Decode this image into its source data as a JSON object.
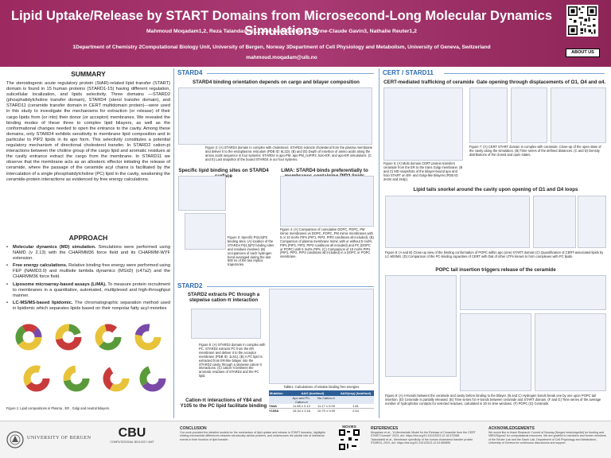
{
  "header": {
    "title": "Lipid Uptake/Release by START Domains from Microsecond-Long Molecular Dynamics Simulations",
    "authors": "Mahmoud Moqadam1,2, Reza Talandashti1,2, Parveen Gartan1,2, Anne-Claude Gavin3, Nathalie Reuter1,2",
    "affiliations": "1Department of Chemistry 2Computational Biology Unit, University of Bergen, Norway 3Department of Cell Physiology and Metabolism, University of Geneva, Switzerland",
    "email": "mahmoud.moqadam@uib.no",
    "about_label": "ABOUT US"
  },
  "summary": {
    "heading": "SUMMARY",
    "text": "The steroidogenic acute regulatory protein (StAR)-related lipid transfer (START) domain is found in 15 human proteins (STARD1-15) having different regulation, subcellular localization, and lipids selectivity. Three domains —STARD2 (phosphatidylcholine transfer domain), STARD4 (sterol transfer domain), and STARD11 (ceramide transfer domain in CERT multidomain protein)—were used in this study to investigate the mechanisms for extraction (or release) of their cargo lipids from (or into) their donor (or acceptor) membranes. We revealed the binding modes of these three to complex lipid bilayers, as well as the conformational changes needed to open the entrance to the cavity. Among these domains, only STARD4 exhibits sensitivity to membrane lipid composition and in particular to PIP2 lipids in its apo form. This selectivity constitutes a potential regulatory mechanism of directional cholesterol transfer. In STARD2 cation-pi interactions between the choline group of the cargo lipid and aromatic residues at the cavity entrance extract the cargo from the membrane. In STARD11 we observe that the membrane acts as an allosteric effector initiating the release of ceramide, where the passage of the ceramide acyl chains is facilitated by the intercalation of a single phosphatidylcholine (PC) lipid in the cavity, weakening the ceramide-protein interactions as evidenced by free energy calculations."
  },
  "approach": {
    "heading": "APPROACH",
    "items": [
      {
        "bold": "Molecular dynamics (MD) simulation.",
        "text": " Simulations were performed using NAMD (v 2.13) with the CHARMM36 force field and its CHARMM-WYF extension."
      },
      {
        "bold": "Free energy calculations.",
        "text": " Relative binding free energy were performed using FEP (NAMD3.0) and multisite lambda dynamics (MSλD) (c47a2) and the CHARMM36 force field."
      },
      {
        "bold": "Liposome microarray-based assays (LiMA).",
        "text": " To measure protein recruitment to membranes in a quantitative, automated, multiplexed and high-throughput manner."
      },
      {
        "bold": "LC-MS/MS-based lipidomic.",
        "text": " The chromatographic separation method used in lipidomic which separates lipids based on their nonpolar fatty acyl moieties"
      }
    ],
    "fig_caption": "Figure 1: Lipid compositions in Plasma , ER , Golgi and neutral bilayers."
  },
  "stard4": {
    "section": "STARD4",
    "title1": "STARD4 binding orientation depends on cargo and bilayer composition",
    "fig2_caption": "Figure 2: (A) STARD4 domain in complex with cholesterol. STARD4 extracts cholesterol from the plasma membrane and deliver it to the endoplasmic reticulum (PDB ID: 6L1D). (B) and (D) Depth of insertion of amino acids along the amino acids sequence in four systems: STARD4 in apo-PM, apo-PM_noPIP2, holo-ER, and apo-ER simulations. (C and E) Last snapshot of the bound STARD4 in our four systems.",
    "title2": "Specific lipid binding sites on STARD4 surface",
    "fig3_caption": "Figure 3: Specific PI(4,5)P2 binding sites. (A) location of the STARD4 PI(4,5)P2 binding sites and residues involved. (B) occupancies of each hydrogen bond averaged during the last 500 ns of the two replica trajectories.",
    "title3": "LiMA: STARD4 binds preferentially to membranes containing PIP2 lipids",
    "fig4_caption": "Figure 4: (A) Comparison of cumulative DOPC, POPC, PM mimic membranes vs DOPC, POPC, PM mimic membranes with 5 or 10 mol% PIPs (PIP1, PIP2, PIP3 conditions all included). (B) Comparison of plasma membrane mimic with or without 5 mol% PIPs (PIP1, PIP2, PIP3 conditions all included) and PC (DOPC or POPC) with 5 mol% PIPs. (C) Comparison of 10 mol% PIPs (PIP1, PIP2, PIP3 conditions all included) in a DOPC or POPC membrane."
  },
  "stard2": {
    "section": "STARD2",
    "title1": "STARD2 extracts PC through a stepwise cation-π interaction",
    "fig5_caption": "Figure 5: (A) STARD2 domain in complex with PC. STARD2 extracts PC from the ER membrane and deliver it to the acceptor membrane (PDB ID: 1LN1). (B) A PC lipid is extracted from ER-like bilayer into the STARD2 cavity through a stepwise cation-π interactions. (C) cation-π between the aromatic residues of STARD2 and the PC lipid.",
    "title2": "Cation-π interactions of Y84 and Y105 to the PC lipid facilitate binding",
    "fig6_caption": "Figure 6: (A) Structure of the STARD2 in complex with PC and cation-π. The difference ΔΔG in binding free energy upon mutation were calculated by FEP and MSλD.",
    "table_caption": "Table1: Calculations of relative binding free energies",
    "table": {
      "headers": [
        "Mutation",
        "ΔΔG (kcal/mol)",
        "",
        "ΔΔG(exp) (kcal/mol)"
      ],
      "sub": [
        "",
        "Apo and PC-Cation-π",
        "No Cation-π",
        ""
      ],
      "rows": [
        [
          "Y84A",
          "11.98 ± 0.12",
          "11.17 ± 0.09",
          "1.81"
        ],
        [
          "Y105A",
          "15.34 ± 0.16",
          "10.70 ± 0.09",
          "2.54"
        ]
      ]
    }
  },
  "cert": {
    "section": "CERT / STARD11",
    "title1": "CERT-mediated trafficking of ceramide",
    "fig6_caption": "Figure 6: (A) Multi domain CERT protein transfers ceramide from the ER to the trans Golgi membrane. (B and C) MD snapshots of the bilayer-bound apo and holo START on ER- and Golgi-like bilayers (PDB ID: 2e3m and 2e3p).",
    "title2": "Gate opening through displacements of Ω1, Ω4 and α4.",
    "fig7_caption": "Figure 7: (A) CERT START domain in complex with ceramide. Close-up of the open state of the cavity along the simulation. (B) Time series of the defined distances. (C and D) Density distributions of the closed and open states.",
    "title3": "Lipid tails snorkel around the cavity upon opening of Ω1 and Ω4 loops",
    "fig8_caption": "Figure 8: (A and B) Close-up view of the binding conformation of POPC within apo (one) START domain (C) Quantification of CERT-associated lipids by LC-MS/MS. (D) Comparison of the PC-binding capacities of CERT with that of other LTPs known to form complexes with PC lipids.",
    "title4": "POPC tail insertion triggers release of the ceramide",
    "fig9_caption": "Figure 9: (A) H-bonds between the ceramide and cavity before binding to the bilayer. (B and C) Hydrogen bonds break one by one upon POPC tail insertion. (D) Ceramide is partially released. (E) Time series for H-bonds between ceramide and START domain. (F and G) Time series of the average number of hydrophobic contacts for selected residues, calculated in 20 ns time windows. (F) POPC (G) Ceramide."
  },
  "footer": {
    "conclusion_heading": "CONCLUSION",
    "conclusion_text": "Our work provided the detailed models for the mechanism of lipid uptake and release in START domains, highlights striking mechanistic differences between structurally similar proteins, and underscores the pivotal role of interfacial events in their function of lipid transfer.",
    "movies": "MOVIES",
    "references_heading": "REFERENCES",
    "ref1": "Moqadam et al., \"A Mechanistic Model for the Release of Ceramide from the CERT START Domain\" 2023, doi: https://doi.org/10.1101/2023.12.18.572088",
    "ref2": "Talandashti et al., Membrane specificity of the human cholesterol transfer protein STARD4, 2023, doi: https://doi.org/10.1101/2023.12.04.569895",
    "ack_heading": "ACKNOWLEDGEMENTS",
    "ack_text": "We would like to thank Research Council of Norway (Norges forskningsråd) for funding and NRIS/Sigma2 for computational resources. We are grateful to members and former members of the Reuter Lab and the Gavin Lab, Department of Cell Physiology and Metabolism, University of Geneva for continuous discussions and support.",
    "uib": "UNIVERSITY OF BERGEN",
    "cbu_title": "CBU",
    "cbu_sub": "COMPUTATIONAL BIOLOGY UNIT"
  }
}
